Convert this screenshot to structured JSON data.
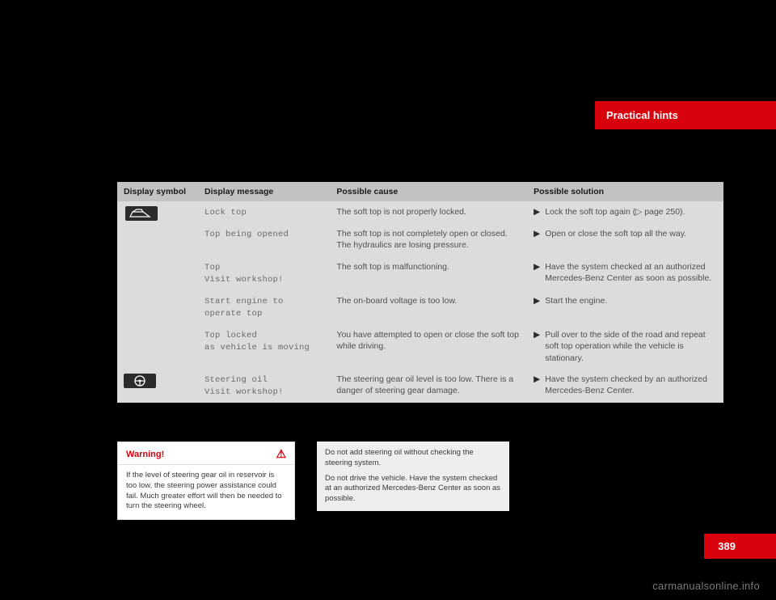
{
  "header": {
    "title": "Practical hints"
  },
  "table": {
    "headers": {
      "symbol": "Display symbol",
      "message": "Display message",
      "cause": "Possible cause",
      "solution": "Possible solution"
    },
    "rows": [
      {
        "symbol_type": "car",
        "msg": "Lock top",
        "cause": "The soft top is not properly locked.",
        "sol": "Lock the soft top again (▷ page 250)."
      },
      {
        "symbol_type": "",
        "msg": "Top being opened",
        "cause": "The soft top is not completely open or closed. The hydraulics are losing pressure.",
        "sol": "Open or close the soft top all the way."
      },
      {
        "symbol_type": "",
        "msg": "Top\nVisit workshop!",
        "cause": "The soft top is malfunctioning.",
        "sol": "Have the system checked at an authorized Mercedes-Benz Center as soon as possible."
      },
      {
        "symbol_type": "",
        "msg": "Start engine to\noperate top",
        "cause": "The on-board voltage is too low.",
        "sol": "Start the engine."
      },
      {
        "symbol_type": "",
        "msg": "Top locked\nas vehicle is moving",
        "cause": "You have attempted to open or close the soft top while driving.",
        "sol": "Pull over to the side of the road and repeat soft top operation while the vehicle is stationary."
      },
      {
        "symbol_type": "steer",
        "msg": "Steering oil\nVisit workshop!",
        "cause": "The steering gear oil level is too low. There is a danger of steering gear damage.",
        "sol": "Have the system checked by an authorized Mercedes-Benz Center."
      }
    ]
  },
  "warning": {
    "title": "Warning!",
    "body": "If the level of steering gear oil in reservoir is too low, the steering power assistance could fail. Much greater effort will then be needed to turn the steering wheel."
  },
  "note": {
    "p1": "Do not add steering oil without checking the steering system.",
    "p2": "Do not drive the vehicle. Have the system checked at an authorized Mercedes-Benz Center as soon as possible."
  },
  "page_number": "389",
  "watermark": "carmanualsonline.info"
}
